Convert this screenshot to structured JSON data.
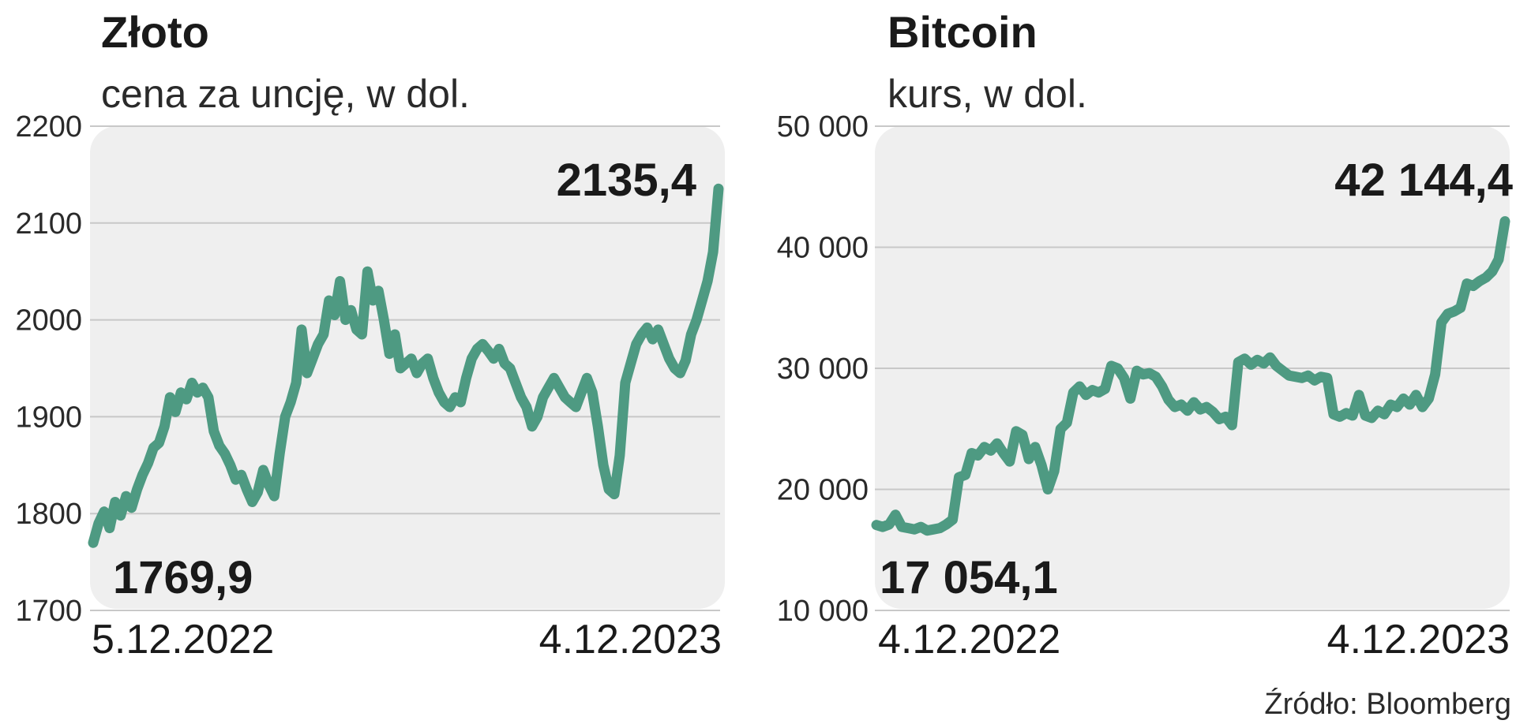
{
  "colors": {
    "line": "#4e9a82",
    "panel": "#efefef",
    "grid": "#c8c8c8",
    "text": "#1a1a1a"
  },
  "source": "Źródło: Bloomberg",
  "chart_data": [
    {
      "type": "line",
      "title": "Złoto",
      "subtitle": "cena za uncję, w dol.",
      "ylim": [
        1700,
        2200
      ],
      "yticks": [
        "1700",
        "1800",
        "1900",
        "2000",
        "2100",
        "2200"
      ],
      "ytick_values": [
        1700,
        1800,
        1900,
        2000,
        2100,
        2200
      ],
      "xlabels": [
        "5.12.2022",
        "4.12.2023"
      ],
      "start_label": "1769,9",
      "end_label": "2135,4",
      "series": [
        {
          "name": "Złoto",
          "values": [
            1769.9,
            1790,
            1802,
            1785,
            1812,
            1798,
            1818,
            1806,
            1825,
            1840,
            1852,
            1868,
            1873,
            1890,
            1920,
            1905,
            1925,
            1918,
            1935,
            1925,
            1930,
            1920,
            1885,
            1870,
            1862,
            1850,
            1835,
            1840,
            1825,
            1812,
            1822,
            1845,
            1830,
            1818,
            1862,
            1900,
            1915,
            1935,
            1990,
            1945,
            1960,
            1975,
            1985,
            2020,
            2005,
            2040,
            2000,
            2010,
            1990,
            1985,
            2050,
            2020,
            2030,
            2000,
            1965,
            1985,
            1950,
            1955,
            1960,
            1945,
            1955,
            1960,
            1940,
            1925,
            1915,
            1910,
            1920,
            1915,
            1940,
            1960,
            1970,
            1975,
            1968,
            1960,
            1970,
            1955,
            1950,
            1935,
            1920,
            1910,
            1890,
            1900,
            1920,
            1930,
            1940,
            1930,
            1920,
            1915,
            1910,
            1925,
            1940,
            1925,
            1890,
            1850,
            1825,
            1820,
            1860,
            1935,
            1955,
            1975,
            1985,
            1992,
            1980,
            1990,
            1975,
            1960,
            1950,
            1945,
            1958,
            1985,
            2000,
            2020,
            2040,
            2070,
            2135.4
          ]
        }
      ]
    },
    {
      "type": "line",
      "title": "Bitcoin",
      "subtitle": "kurs, w dol.",
      "ylim": [
        10000,
        50000
      ],
      "yticks": [
        "10 000",
        "20 000",
        "30 000",
        "40 000",
        "50 000"
      ],
      "ytick_values": [
        10000,
        20000,
        30000,
        40000,
        50000
      ],
      "xlabels": [
        "4.12.2022",
        "4.12.2023"
      ],
      "start_label": "17 054,1",
      "end_label": "42 144,4",
      "series": [
        {
          "name": "Bitcoin",
          "values": [
            17054.1,
            16900,
            17100,
            17900,
            16900,
            16800,
            16700,
            16900,
            16600,
            16700,
            16800,
            17100,
            17500,
            21000,
            21200,
            23000,
            22800,
            23500,
            23200,
            23800,
            23000,
            22300,
            24800,
            24500,
            22500,
            23500,
            22000,
            20000,
            21500,
            25000,
            25500,
            28000,
            28500,
            27800,
            28200,
            28000,
            28300,
            30200,
            30000,
            29200,
            27500,
            29800,
            29500,
            29600,
            29300,
            28500,
            27400,
            26800,
            27000,
            26500,
            27200,
            26600,
            26800,
            26400,
            25800,
            26000,
            25300,
            30500,
            30800,
            30300,
            30700,
            30400,
            30900,
            30200,
            29800,
            29400,
            29300,
            29200,
            29400,
            29000,
            29300,
            29200,
            26200,
            26000,
            26300,
            26100,
            27800,
            26100,
            25900,
            26500,
            26200,
            27000,
            26800,
            27500,
            27000,
            27800,
            26800,
            27500,
            29500,
            33800,
            34500,
            34700,
            35000,
            37000,
            36800,
            37200,
            37500,
            38000,
            39000,
            42144.4
          ]
        }
      ]
    }
  ]
}
